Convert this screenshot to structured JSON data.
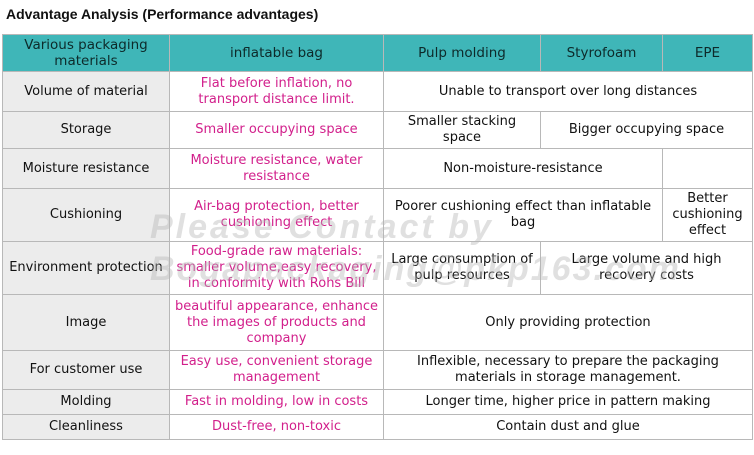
{
  "title": "Advantage Analysis (Performance advantages)",
  "headers": [
    "Various packaging materials",
    "inflatable bag",
    "Pulp molding",
    "Styrofoam",
    "EPE"
  ],
  "rows": {
    "volume": {
      "label": "Volume of material",
      "inflatable": "Flat before inflation, no transport distance limit.",
      "others": "Unable to transport over long distances"
    },
    "storage": {
      "label": "Storage",
      "inflatable": "Smaller occupying space",
      "pulp": "Smaller stacking space",
      "styro_epe": "Bigger occupying space"
    },
    "moisture": {
      "label": "Moisture resistance",
      "inflatable": "Moisture resistance, water resistance",
      "others": "Non-moisture-resistance"
    },
    "cushioning": {
      "label": "Cushioning",
      "inflatable": "Air-bag protection, better cushioning effect",
      "pulp_styro": "Poorer cushioning effect than inflatable bag",
      "epe": "Better cushioning effect"
    },
    "environment": {
      "label": "Environment protection",
      "inflatable": "Food-grade raw materials: smaller volume,easy recovery, in conformity with Rohs Bill",
      "pulp": "Large consumption of pulp resources",
      "styro_epe": "Large volume and high recovery costs"
    },
    "image": {
      "label": "Image",
      "inflatable": "beautiful appearance, enhance the images of products and company",
      "others": "Only providing protection"
    },
    "customer": {
      "label": "For customer use",
      "inflatable": "Easy use, convenient storage management",
      "others": "Inflexible, necessary to prepare the packaging materials in storage management."
    },
    "molding": {
      "label": "Molding",
      "inflatable": "Fast in molding, low in costs",
      "others": "Longer time, higher price in pattern making"
    },
    "cleanliness": {
      "label": "Cleanliness",
      "inflatable": "Dust-free, non-toxic",
      "others": "Contain dust and glue"
    }
  },
  "watermark": {
    "line1": "Please Contact by",
    "line2": "Bogapackaging@pkp163.com"
  }
}
